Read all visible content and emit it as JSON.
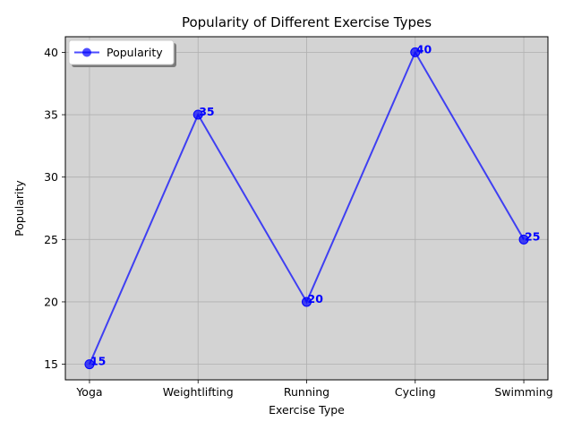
{
  "chart_data": {
    "type": "line",
    "title": "Popularity of Different Exercise Types",
    "xlabel": "Exercise Type",
    "ylabel": "Popularity",
    "categories": [
      "Yoga",
      "Weightlifting",
      "Running",
      "Cycling",
      "Swimming"
    ],
    "series": [
      {
        "name": "Popularity",
        "values": [
          15,
          35,
          20,
          40,
          25
        ],
        "color": "#0000ff",
        "marker": "circle"
      }
    ],
    "data_labels": [
      "15",
      "35",
      "20",
      "40",
      "25"
    ],
    "ylim": [
      13.75,
      41.25
    ],
    "yticks": [
      15,
      20,
      25,
      30,
      35,
      40
    ],
    "ytick_labels": [
      "15",
      "20",
      "25",
      "30",
      "35",
      "40"
    ],
    "grid": true,
    "legend_position": "upper left",
    "plot_background": "#d3d3d3",
    "grid_color": "#b0b0b0",
    "label_color": "#0000ff"
  }
}
